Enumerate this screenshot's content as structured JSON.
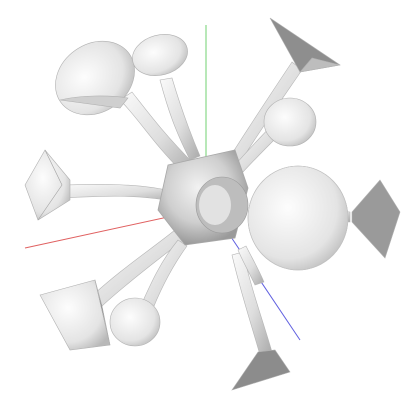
{
  "scene": {
    "background": "#ffffff",
    "axes": {
      "x_color": "#e06060",
      "y_color": "#70d070",
      "z_color": "#6060e0"
    },
    "model": {
      "shading_light": "#f4f4f4",
      "shading_mid": "#d8d8d8",
      "shading_dark": "#a8a8a8",
      "arm_count": 11
    }
  }
}
